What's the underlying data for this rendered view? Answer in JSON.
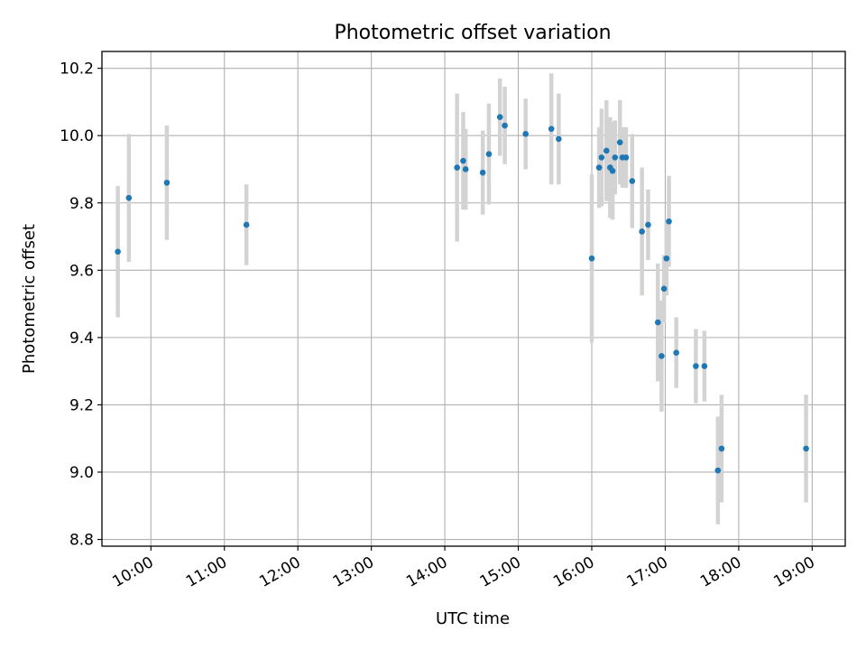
{
  "chart_data": {
    "type": "scatter",
    "title": "Photometric offset variation",
    "xlabel": "UTC time",
    "ylabel": "Photometric offset",
    "x_unit": "UTC hour of day",
    "xlim": [
      "09:20",
      "19:27"
    ],
    "ylim": [
      8.78,
      10.25
    ],
    "grid": true,
    "legend": "none",
    "x_ticks": [
      "10:00",
      "11:00",
      "12:00",
      "13:00",
      "14:00",
      "15:00",
      "16:00",
      "17:00",
      "18:00",
      "19:00"
    ],
    "y_ticks": [
      "8.8",
      "9.0",
      "9.2",
      "9.4",
      "9.6",
      "9.8",
      "10.0",
      "10.2"
    ],
    "colors": {
      "point": "#1f77b4",
      "errorbar": "#d3d3d3",
      "grid": "#b0b0b0"
    },
    "points": [
      {
        "x": "09:33",
        "y": 9.655,
        "yerr": 0.195
      },
      {
        "x": "09:42",
        "y": 9.815,
        "yerr": 0.19
      },
      {
        "x": "10:13",
        "y": 9.86,
        "yerr": 0.17
      },
      {
        "x": "11:18",
        "y": 9.735,
        "yerr": 0.12
      },
      {
        "x": "14:10",
        "y": 9.905,
        "yerr": 0.22
      },
      {
        "x": "14:15",
        "y": 9.925,
        "yerr": 0.145
      },
      {
        "x": "14:17",
        "y": 9.9,
        "yerr": 0.12
      },
      {
        "x": "14:31",
        "y": 9.89,
        "yerr": 0.125
      },
      {
        "x": "14:36",
        "y": 9.945,
        "yerr": 0.15
      },
      {
        "x": "14:45",
        "y": 10.055,
        "yerr": 0.115
      },
      {
        "x": "14:49",
        "y": 10.03,
        "yerr": 0.115
      },
      {
        "x": "15:06",
        "y": 10.005,
        "yerr": 0.105
      },
      {
        "x": "15:27",
        "y": 10.02,
        "yerr": 0.165
      },
      {
        "x": "15:33",
        "y": 9.99,
        "yerr": 0.135
      },
      {
        "x": "16:00",
        "y": 9.635,
        "yerr": 0.25
      },
      {
        "x": "16:06",
        "y": 9.905,
        "yerr": 0.12
      },
      {
        "x": "16:08",
        "y": 9.935,
        "yerr": 0.145
      },
      {
        "x": "16:12",
        "y": 9.955,
        "yerr": 0.15
      },
      {
        "x": "16:15",
        "y": 9.905,
        "yerr": 0.15
      },
      {
        "x": "16:17",
        "y": 9.895,
        "yerr": 0.145
      },
      {
        "x": "16:19",
        "y": 9.935,
        "yerr": 0.11
      },
      {
        "x": "16:23",
        "y": 9.98,
        "yerr": 0.125
      },
      {
        "x": "16:25",
        "y": 9.935,
        "yerr": 0.09
      },
      {
        "x": "16:28",
        "y": 9.935,
        "yerr": 0.09
      },
      {
        "x": "16:33",
        "y": 9.865,
        "yerr": 0.14
      },
      {
        "x": "16:41",
        "y": 9.715,
        "yerr": 0.19
      },
      {
        "x": "16:46",
        "y": 9.735,
        "yerr": 0.105
      },
      {
        "x": "16:54",
        "y": 9.445,
        "yerr": 0.175
      },
      {
        "x": "16:57",
        "y": 9.345,
        "yerr": 0.165
      },
      {
        "x": "16:59",
        "y": 9.545,
        "yerr": 0.1
      },
      {
        "x": "17:01",
        "y": 9.635,
        "yerr": 0.11
      },
      {
        "x": "17:03",
        "y": 9.745,
        "yerr": 0.135
      },
      {
        "x": "17:09",
        "y": 9.355,
        "yerr": 0.105
      },
      {
        "x": "17:25",
        "y": 9.315,
        "yerr": 0.11
      },
      {
        "x": "17:32",
        "y": 9.315,
        "yerr": 0.105
      },
      {
        "x": "17:43",
        "y": 9.005,
        "yerr": 0.16
      },
      {
        "x": "17:46",
        "y": 9.07,
        "yerr": 0.16
      },
      {
        "x": "18:55",
        "y": 9.07,
        "yerr": 0.16
      }
    ]
  }
}
